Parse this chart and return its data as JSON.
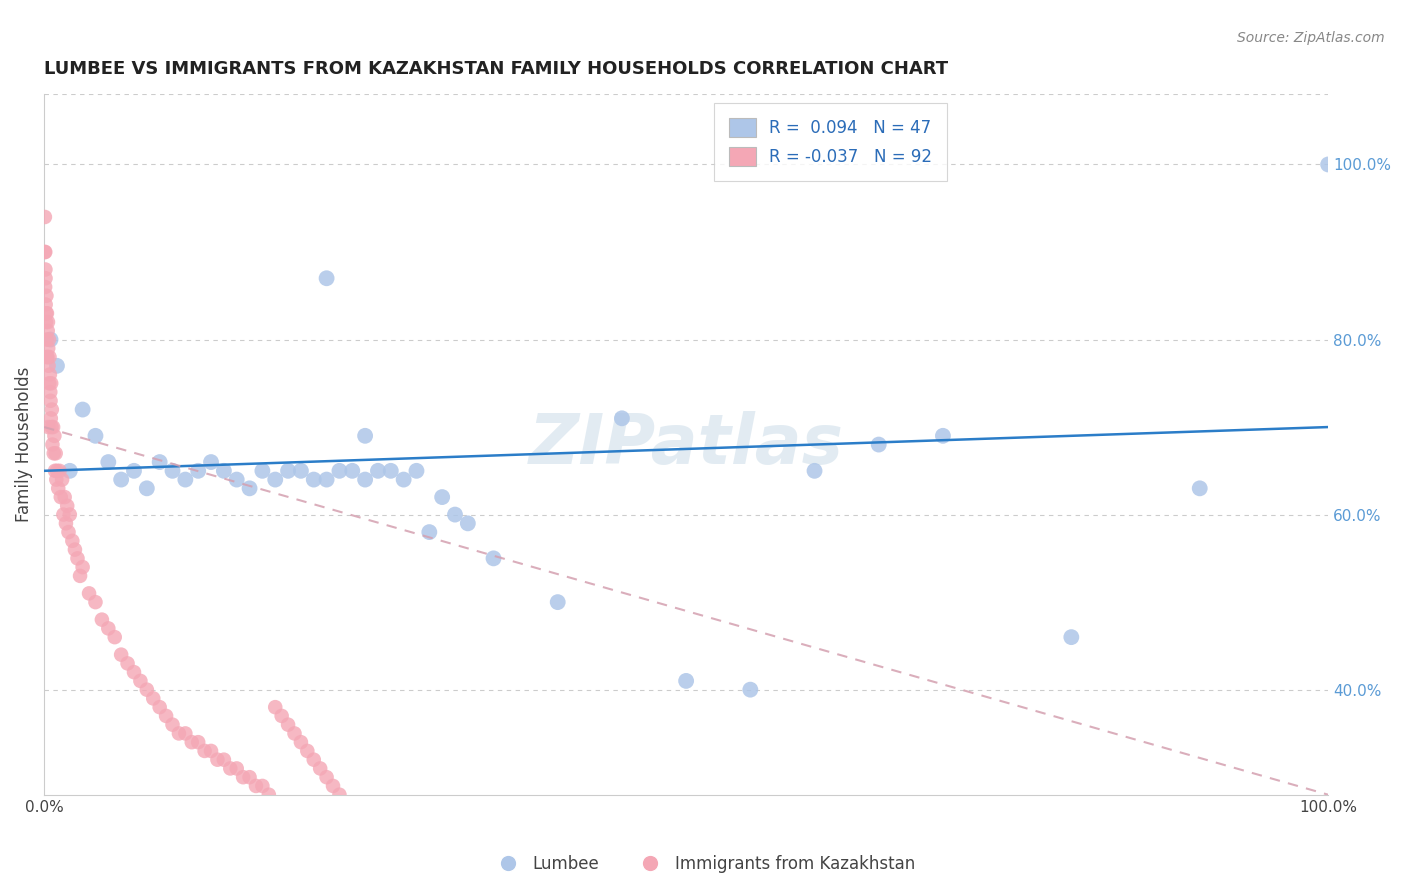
{
  "title": "LUMBEE VS IMMIGRANTS FROM KAZAKHSTAN FAMILY HOUSEHOLDS CORRELATION CHART",
  "source_text": "Source: ZipAtlas.com",
  "ylabel": "Family Households",
  "lumbee_label": "Lumbee",
  "kazakhstan_label": "Immigrants from Kazakhstan",
  "blue_color": "#aec6e8",
  "pink_color": "#f4a7b5",
  "blue_line_color": "#2b7dc8",
  "pink_line_color": "#d4a0b0",
  "title_color": "#222222",
  "watermark": "ZIPatlas",
  "xlim": [
    0,
    100
  ],
  "ylim": [
    28,
    108
  ],
  "lumbee_x": [
    0.5,
    1.0,
    2.0,
    3.0,
    4.0,
    5.0,
    6.0,
    7.0,
    8.0,
    9.0,
    10.0,
    11.0,
    12.0,
    13.0,
    14.0,
    15.0,
    16.0,
    17.0,
    18.0,
    19.0,
    20.0,
    21.0,
    22.0,
    23.0,
    24.0,
    25.0,
    26.0,
    27.0,
    28.0,
    29.0,
    30.0,
    31.0,
    32.0,
    33.0,
    35.0,
    40.0,
    45.0,
    50.0,
    55.0,
    60.0,
    65.0,
    70.0,
    80.0,
    90.0,
    100.0,
    22.0,
    25.0
  ],
  "lumbee_y": [
    80.0,
    77.0,
    65.0,
    72.0,
    69.0,
    66.0,
    64.0,
    65.0,
    63.0,
    66.0,
    65.0,
    64.0,
    65.0,
    66.0,
    65.0,
    64.0,
    63.0,
    65.0,
    64.0,
    65.0,
    65.0,
    64.0,
    64.0,
    65.0,
    65.0,
    64.0,
    65.0,
    65.0,
    64.0,
    65.0,
    58.0,
    62.0,
    60.0,
    59.0,
    55.0,
    50.0,
    71.0,
    41.0,
    40.0,
    65.0,
    68.0,
    69.0,
    46.0,
    63.0,
    100.0,
    87.0,
    69.0
  ],
  "kazakhstan_x": [
    0.05,
    0.08,
    0.1,
    0.12,
    0.15,
    0.18,
    0.2,
    0.22,
    0.25,
    0.28,
    0.3,
    0.32,
    0.35,
    0.38,
    0.4,
    0.42,
    0.45,
    0.48,
    0.5,
    0.52,
    0.55,
    0.58,
    0.6,
    0.65,
    0.7,
    0.75,
    0.8,
    0.85,
    0.9,
    0.95,
    1.0,
    1.1,
    1.2,
    1.3,
    1.4,
    1.5,
    1.6,
    1.7,
    1.8,
    1.9,
    2.0,
    2.2,
    2.4,
    2.6,
    2.8,
    3.0,
    3.5,
    4.0,
    4.5,
    5.0,
    5.5,
    6.0,
    6.5,
    7.0,
    7.5,
    8.0,
    8.5,
    9.0,
    9.5,
    10.0,
    10.5,
    11.0,
    11.5,
    12.0,
    12.5,
    13.0,
    13.5,
    14.0,
    14.5,
    15.0,
    15.5,
    16.0,
    16.5,
    17.0,
    17.5,
    18.0,
    18.5,
    19.0,
    19.5,
    20.0,
    20.5,
    21.0,
    21.5,
    22.0,
    22.5,
    23.0,
    0.06,
    0.09,
    0.11,
    0.16,
    0.23,
    0.33
  ],
  "kazakhstan_y": [
    90.0,
    86.0,
    88.0,
    84.0,
    82.0,
    85.0,
    80.0,
    83.0,
    78.0,
    81.0,
    82.0,
    79.0,
    77.0,
    80.0,
    75.0,
    78.0,
    76.0,
    74.0,
    73.0,
    71.0,
    75.0,
    70.0,
    72.0,
    68.0,
    70.0,
    67.0,
    69.0,
    65.0,
    67.0,
    64.0,
    65.0,
    63.0,
    65.0,
    62.0,
    64.0,
    60.0,
    62.0,
    59.0,
    61.0,
    58.0,
    60.0,
    57.0,
    56.0,
    55.0,
    53.0,
    54.0,
    51.0,
    50.0,
    48.0,
    47.0,
    46.0,
    44.0,
    43.0,
    42.0,
    41.0,
    40.0,
    39.0,
    38.0,
    37.0,
    36.0,
    35.0,
    35.0,
    34.0,
    34.0,
    33.0,
    33.0,
    32.0,
    32.0,
    31.0,
    31.0,
    30.0,
    30.0,
    29.0,
    29.0,
    28.0,
    38.0,
    37.0,
    36.0,
    35.0,
    34.0,
    33.0,
    32.0,
    31.0,
    30.0,
    29.0,
    28.0,
    94.0,
    90.0,
    87.0,
    83.0,
    78.0,
    70.0
  ]
}
